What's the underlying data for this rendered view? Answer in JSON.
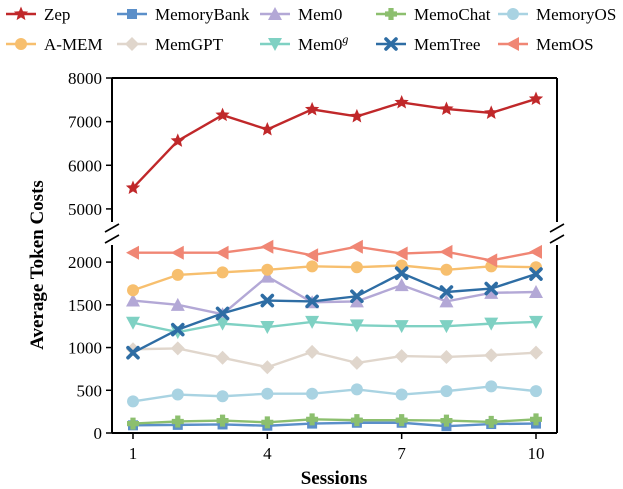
{
  "chart_data": {
    "type": "line",
    "xlabel": "Sessions",
    "ylabel": "Average Token Costs",
    "x": [
      1,
      2,
      3,
      4,
      5,
      6,
      7,
      8,
      9,
      10
    ],
    "xticks": [
      1,
      4,
      7,
      10
    ],
    "yticks_upper": [
      5000,
      6000,
      7000,
      8000
    ],
    "yticks_lower": [
      0,
      500,
      1000,
      1500,
      2000
    ],
    "ylim_upper": [
      4700,
      8000
    ],
    "ylim_lower": [
      0,
      2200
    ],
    "broken_y_axis": true,
    "grid": false,
    "legend_position": "top",
    "series": [
      {
        "name": "Zep",
        "color": "#c0282a",
        "marker": "star",
        "values": [
          5480,
          6560,
          7150,
          6820,
          7280,
          7120,
          7440,
          7290,
          7200,
          7520
        ]
      },
      {
        "name": "MemoryBank",
        "color": "#5b8fc9",
        "marker": "square",
        "values": [
          90,
          95,
          100,
          85,
          110,
          120,
          120,
          80,
          105,
          110
        ]
      },
      {
        "name": "Mem0",
        "color": "#b3a8d6",
        "marker": "triangle-up",
        "values": [
          1550,
          1500,
          1390,
          1830,
          1530,
          1540,
          1730,
          1540,
          1640,
          1650
        ]
      },
      {
        "name": "MemoChat",
        "color": "#8cbf6e",
        "marker": "plus",
        "values": [
          110,
          135,
          145,
          125,
          160,
          150,
          150,
          145,
          130,
          160
        ]
      },
      {
        "name": "MemoryOS",
        "color": "#a9d3e2",
        "marker": "circle",
        "values": [
          370,
          450,
          430,
          460,
          460,
          510,
          450,
          490,
          545,
          490
        ]
      },
      {
        "name": "A-MEM",
        "color": "#f7bf6e",
        "marker": "circle",
        "values": [
          1670,
          1850,
          1880,
          1910,
          1950,
          1940,
          1960,
          1910,
          1950,
          1940
        ]
      },
      {
        "name": "MemGPT",
        "color": "#e0d6cc",
        "marker": "diamond",
        "values": [
          980,
          990,
          880,
          770,
          950,
          820,
          900,
          890,
          910,
          940
        ]
      },
      {
        "name": "Mem0^g",
        "color": "#7fd1c3",
        "marker": "triangle-down",
        "values": [
          1290,
          1180,
          1280,
          1240,
          1300,
          1260,
          1250,
          1250,
          1280,
          1300
        ]
      },
      {
        "name": "MemTree",
        "color": "#2e6da4",
        "marker": "x",
        "values": [
          940,
          1210,
          1400,
          1550,
          1540,
          1600,
          1870,
          1650,
          1690,
          1860
        ]
      },
      {
        "name": "MemOS",
        "color": "#f08674",
        "marker": "triangle-left",
        "values": [
          2110,
          2110,
          2110,
          2180,
          2080,
          2180,
          2100,
          2120,
          2020,
          2120
        ]
      }
    ]
  }
}
